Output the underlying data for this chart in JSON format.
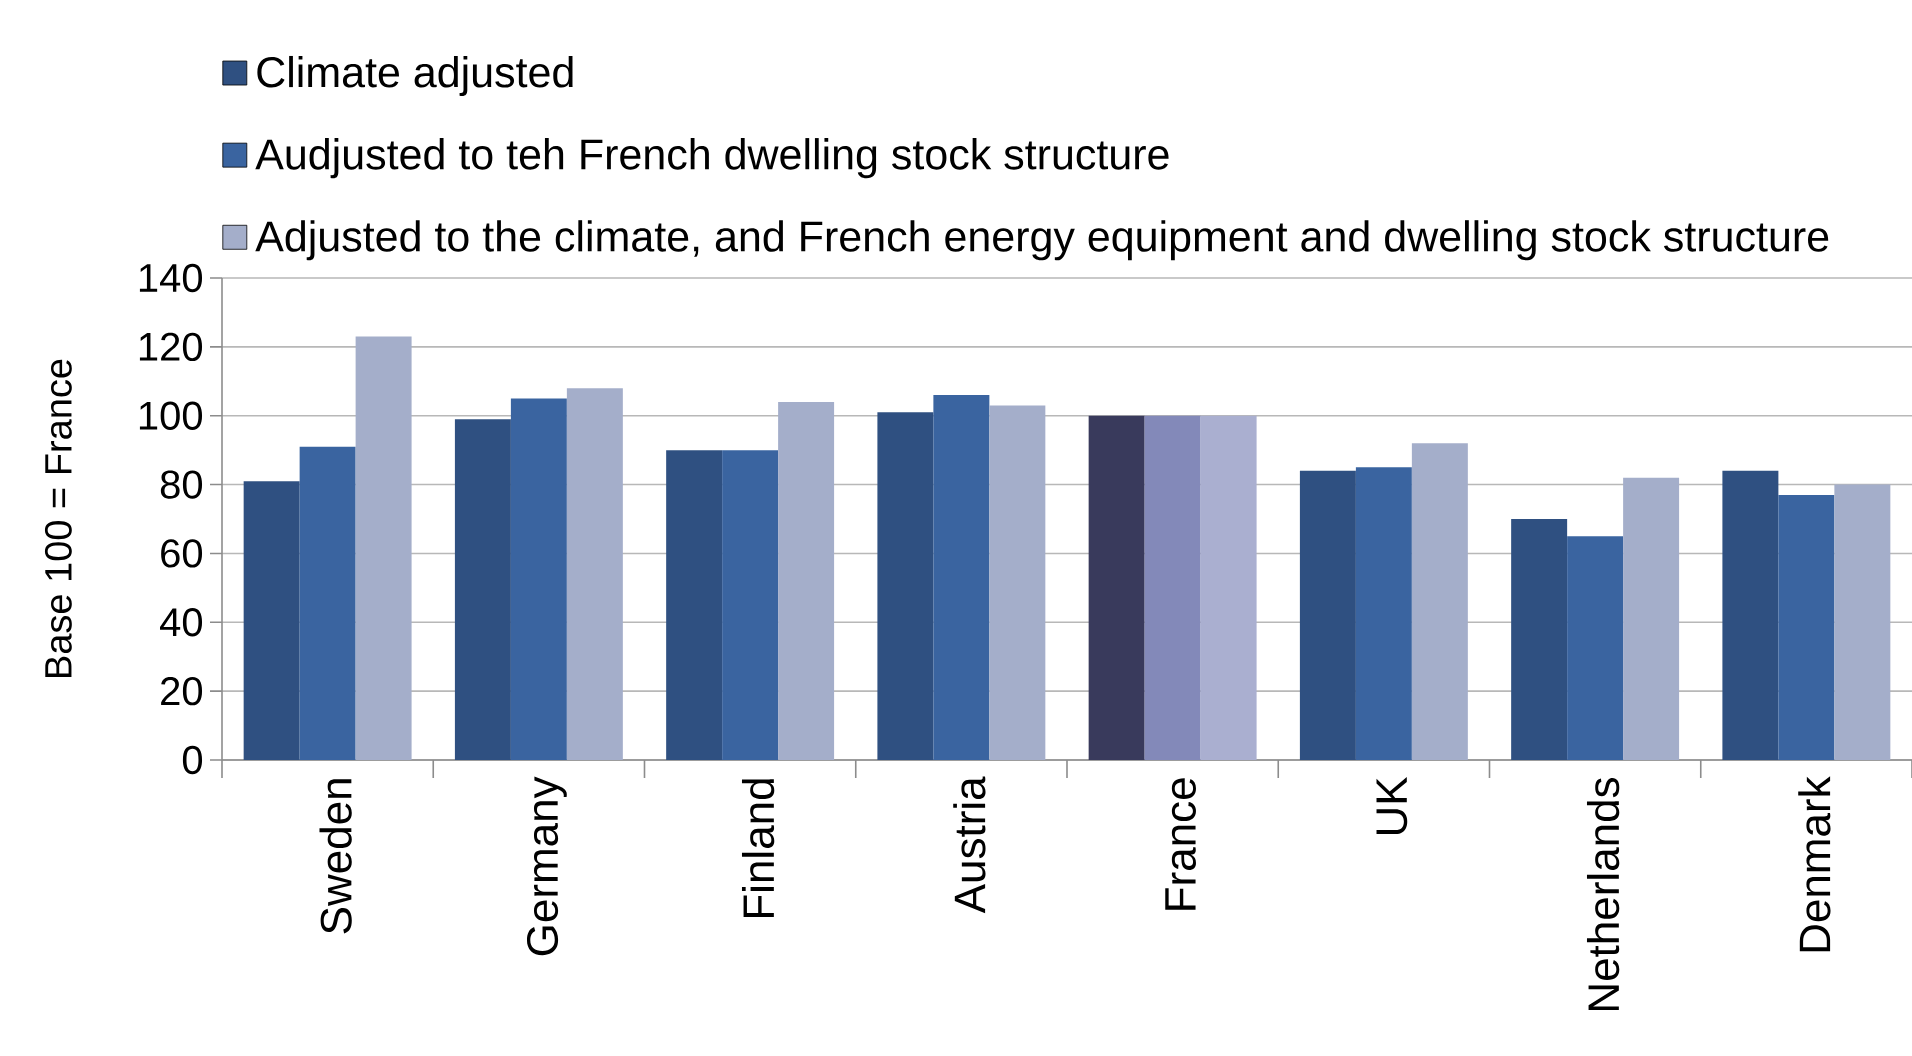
{
  "chart_data": {
    "type": "bar",
    "ylabel": "Base 100 = France",
    "categories": [
      "Sweden",
      "Germany",
      "Finland",
      "Austria",
      "France",
      "UK",
      "Netherlands",
      "Denmark"
    ],
    "series": [
      {
        "name": "Climate adjusted",
        "color": "#2f5081",
        "colors": [
          "#2f5081",
          "#2f5081",
          "#2f5081",
          "#2f5081",
          "#393a5c",
          "#2f5081",
          "#2f5081",
          "#2f5081"
        ],
        "values": [
          81,
          99,
          90,
          101,
          100,
          84,
          70,
          84
        ]
      },
      {
        "name": "Audjusted to teh French dwelling stock structure",
        "color": "#3a64a0",
        "colors": [
          "#3a64a0",
          "#3a64a0",
          "#3a64a0",
          "#3a64a0",
          "#8389b9",
          "#3a64a0",
          "#3a64a0",
          "#3a64a0"
        ],
        "values": [
          91,
          105,
          90,
          106,
          100,
          85,
          65,
          77
        ]
      },
      {
        "name": "Adjusted to the  climate, and French energy equipment and dwelling stock structure",
        "color": "#a4aeca",
        "colors": [
          "#a4aeca",
          "#a4aeca",
          "#a4aeca",
          "#a4aeca",
          "#aaafd0",
          "#a4aeca",
          "#a4aeca",
          "#a4aeca"
        ],
        "values": [
          123,
          108,
          104,
          103,
          100,
          92,
          82,
          80
        ]
      }
    ],
    "ylim": [
      0,
      140
    ],
    "yticks": [
      0,
      20,
      40,
      60,
      80,
      100,
      120,
      140
    ],
    "grid": "y",
    "legend": "top"
  }
}
